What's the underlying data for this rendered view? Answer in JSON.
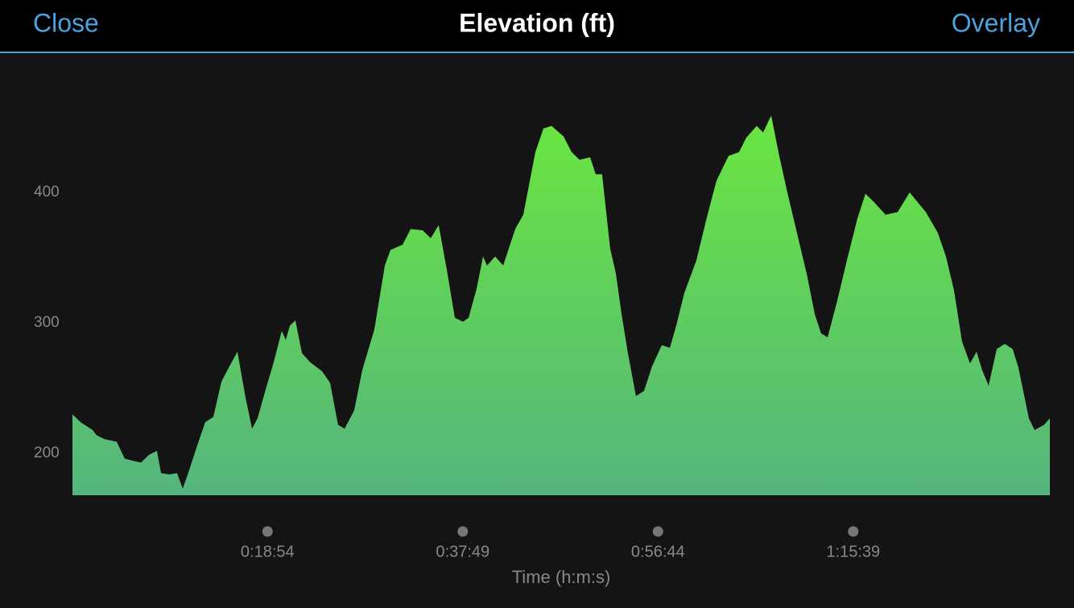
{
  "header": {
    "left_button": "Close",
    "title": "Elevation (ft)",
    "right_button": "Overlay"
  },
  "chart_data": {
    "type": "area",
    "x_label": "Time (h:m:s)",
    "color": [
      "#6ae63f",
      "#55b57e"
    ],
    "xlim": [
      0,
      5682
    ],
    "ylim": [
      168,
      500
    ],
    "xticks": [
      {
        "value": 1134,
        "label": "0:18:54"
      },
      {
        "value": 2269,
        "label": "0:37:49"
      },
      {
        "value": 3404,
        "label": "0:56:44"
      },
      {
        "value": 4539,
        "label": "1:15:39"
      }
    ],
    "yticks": [
      200,
      300,
      400
    ],
    "x": [
      0,
      47,
      117,
      140,
      187,
      257,
      304,
      398,
      445,
      491,
      515,
      562,
      608,
      641,
      678,
      725,
      772,
      819,
      866,
      913,
      959,
      1006,
      1044,
      1076,
      1123,
      1170,
      1217,
      1240,
      1264,
      1296,
      1334,
      1381,
      1451,
      1498,
      1544,
      1582,
      1638,
      1685,
      1755,
      1816,
      1849,
      1919,
      1966,
      2036,
      2083,
      2129,
      2176,
      2223,
      2270,
      2303,
      2349,
      2387,
      2410,
      2457,
      2504,
      2574,
      2621,
      2691,
      2738,
      2785,
      2855,
      2902,
      2948,
      3009,
      3042,
      3079,
      3126,
      3159,
      3192,
      3229,
      3276,
      3323,
      3370,
      3426,
      3473,
      3510,
      3557,
      3627,
      3688,
      3744,
      3814,
      3875,
      3917,
      3978,
      4015,
      4062,
      4109,
      4156,
      4212,
      4273,
      4315,
      4352,
      4390,
      4446,
      4502,
      4563,
      4610,
      4657,
      4727,
      4797,
      4867,
      4961,
      5031,
      5078,
      5125,
      5171,
      5218,
      5256,
      5288,
      5326,
      5373,
      5420,
      5466,
      5499,
      5560,
      5593,
      5649,
      5682
    ],
    "values": [
      230,
      224,
      218,
      214,
      211,
      209,
      196,
      193,
      199,
      202,
      185,
      184,
      185,
      173,
      187,
      206,
      224,
      228,
      255,
      267,
      278,
      243,
      219,
      227,
      249,
      270,
      294,
      287,
      298,
      302,
      277,
      270,
      263,
      254,
      222,
      219,
      233,
      264,
      295,
      344,
      356,
      360,
      372,
      371,
      365,
      375,
      341,
      304,
      301,
      304,
      326,
      351,
      344,
      351,
      344,
      372,
      383,
      431,
      449,
      451,
      443,
      431,
      425,
      427,
      414,
      414,
      357,
      338,
      307,
      277,
      244,
      248,
      267,
      283,
      281,
      298,
      323,
      348,
      381,
      409,
      428,
      431,
      442,
      451,
      446,
      459,
      428,
      400,
      369,
      335,
      307,
      292,
      289,
      317,
      348,
      380,
      399,
      393,
      383,
      385,
      400,
      385,
      369,
      351,
      325,
      286,
      269,
      278,
      264,
      252,
      280,
      284,
      280,
      266,
      227,
      218,
      222,
      227
    ]
  }
}
